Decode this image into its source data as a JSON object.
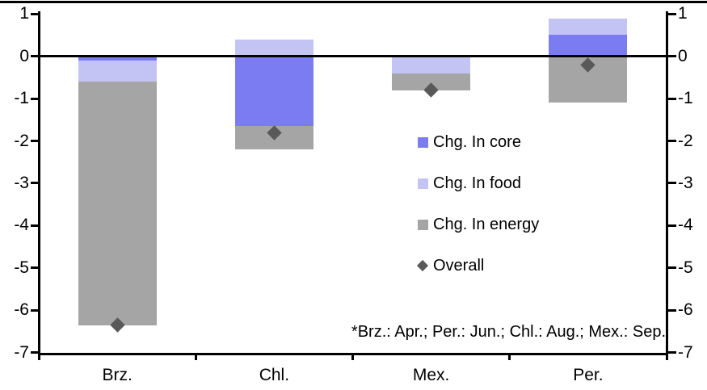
{
  "chart_data": {
    "type": "bar",
    "variant": "stacked-bars-with-diamond-overlay",
    "categories": [
      "Brz.",
      "Chl.",
      "Mex.",
      "Per."
    ],
    "series": [
      {
        "name": "Chg. In core",
        "kind": "bar",
        "color": "#7c7cf2",
        "values": [
          -0.1,
          -1.65,
          0.0,
          0.5
        ]
      },
      {
        "name": "Chg. In food",
        "kind": "bar",
        "color": "#c4c4f4",
        "values": [
          -0.5,
          0.4,
          -0.4,
          0.4
        ]
      },
      {
        "name": "Chg. In energy",
        "kind": "bar",
        "color": "#a5a5a5",
        "values": [
          -5.75,
          -0.55,
          -0.4,
          -1.1
        ]
      },
      {
        "name": "Overall",
        "kind": "scatter",
        "marker": "diamond",
        "color": "#595959",
        "values": [
          -6.35,
          -1.8,
          -0.8,
          -0.2
        ]
      }
    ],
    "ylim": [
      -7,
      1
    ],
    "yticks": [
      1,
      0,
      -1,
      -2,
      -3,
      -4,
      -5,
      -6,
      -7
    ],
    "grid": false,
    "legend_position": "center-right",
    "title": "",
    "xlabel": "",
    "ylabel": "",
    "footnote": "*Brz.: Apr.; Per.: Jun.; Chl.: Aug.; Mex.: Sep.",
    "axis_color": "#000000",
    "background_color": "#ffffff"
  }
}
